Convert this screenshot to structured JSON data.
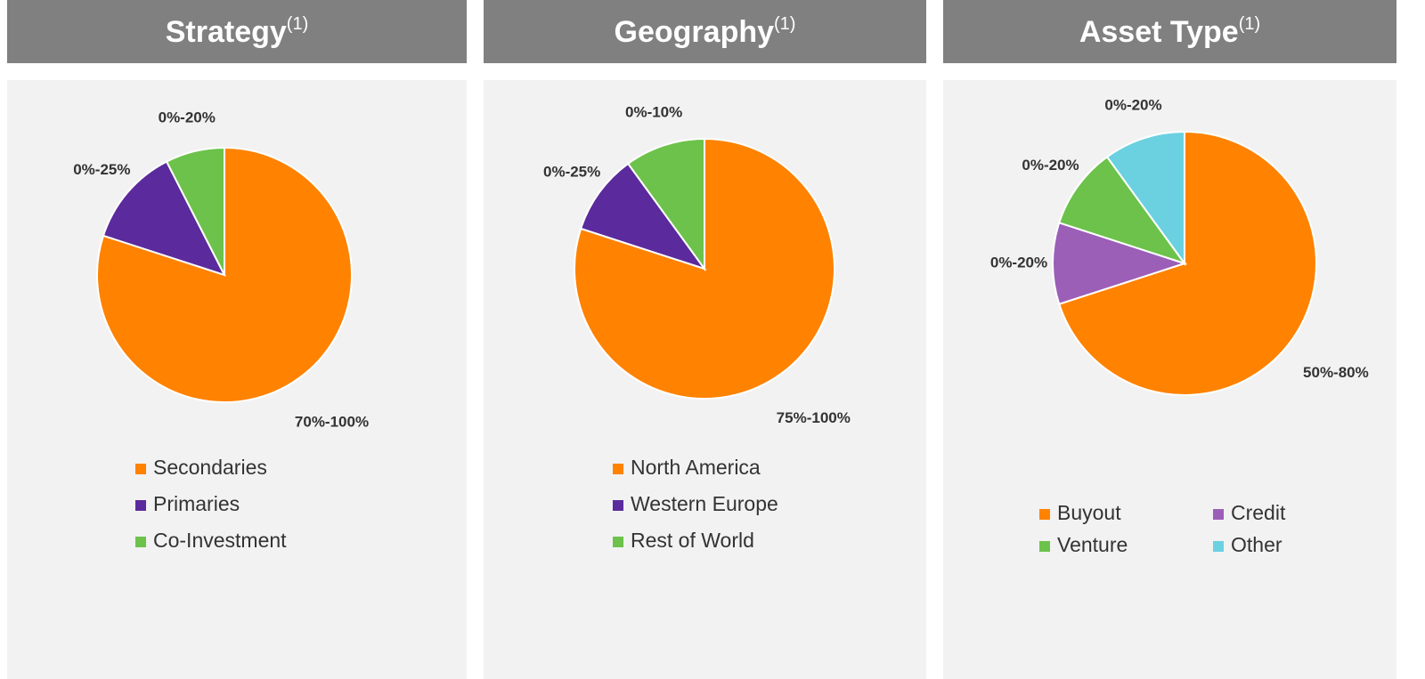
{
  "chart_data": [
    {
      "type": "pie",
      "title": "Strategy",
      "title_note": "(1)",
      "categories": [
        "Secondaries",
        "Primaries",
        "Co-Investment"
      ],
      "values": [
        80,
        12.5,
        7.5
      ],
      "slice_labels": [
        "70%-100%",
        "0%-25%",
        "0%-20%"
      ],
      "colors": [
        "#ff8200",
        "#5b2a9c",
        "#6cc24a"
      ]
    },
    {
      "type": "pie",
      "title": "Geography",
      "title_note": "(1)",
      "categories": [
        "North America",
        "Western Europe",
        "Rest of World"
      ],
      "values": [
        80,
        10,
        10
      ],
      "slice_labels": [
        "75%-100%",
        "0%-25%",
        "0%-10%"
      ],
      "colors": [
        "#ff8200",
        "#5b2a9c",
        "#6cc24a"
      ]
    },
    {
      "type": "pie",
      "title": "Asset Type",
      "title_note": "(1)",
      "categories": [
        "Buyout",
        "Credit",
        "Venture",
        "Other"
      ],
      "values": [
        70,
        10,
        10,
        10
      ],
      "slice_labels": [
        "50%-80%",
        "0%-20%",
        "0%-20%",
        "0%-20%"
      ],
      "colors": [
        "#ff8200",
        "#9b5fb8",
        "#6cc24a",
        "#6bd1e1"
      ]
    }
  ]
}
